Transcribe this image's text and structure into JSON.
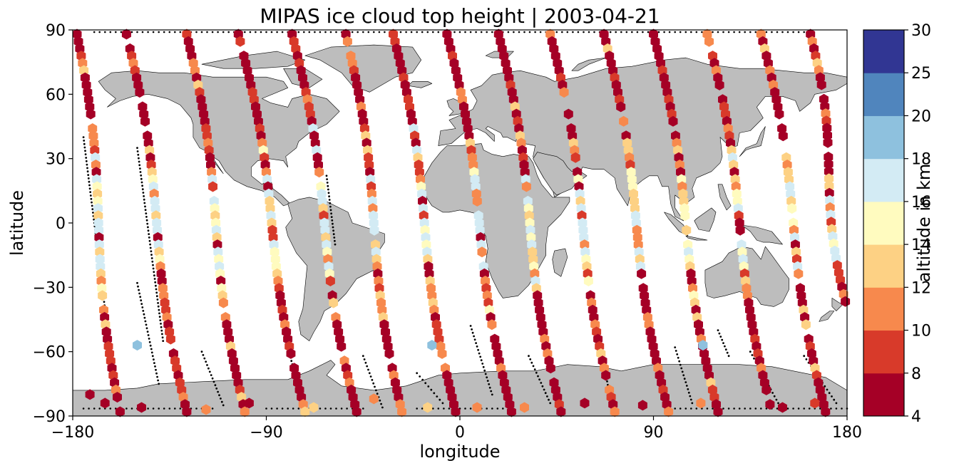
{
  "chart_data": {
    "type": "scatter",
    "title": "MIPAS ice cloud top height | 2003-04-21",
    "xlabel": "longitude",
    "ylabel": "latitude",
    "xlim": [
      -180,
      180
    ],
    "ylim": [
      -90,
      90
    ],
    "xticks": [
      -180,
      -90,
      0,
      90,
      180
    ],
    "yticks": [
      -90,
      -60,
      -30,
      0,
      30,
      60,
      90
    ],
    "xtick_labels": [
      "−180",
      "−90",
      "0",
      "90",
      "180"
    ],
    "ytick_labels": [
      "−90",
      "−60",
      "−30",
      "0",
      "30",
      "60",
      "90"
    ],
    "grid": false,
    "map_background": "world coastlines, land filled grey",
    "colors": {
      "land": "#bdbdbd",
      "ocean": "#ffffff",
      "track": "#000000"
    },
    "colorbar": {
      "label": "altitude in km",
      "boundaries": [
        4,
        8,
        10,
        12,
        14,
        16,
        18,
        20,
        25,
        30
      ],
      "tick_labels": [
        "4",
        "8",
        "10",
        "12",
        "14",
        "16",
        "18",
        "20",
        "25",
        "30"
      ],
      "colors": [
        "#a50026",
        "#d73027",
        "#f46d43",
        "#fdae61",
        "#fee090",
        "#e0f3f8",
        "#abd9e9",
        "#74add1",
        "#4575b4",
        "#313695"
      ],
      "display_colors": [
        "#a50026",
        "#d83a2a",
        "#f7894d",
        "#fdd184",
        "#fffbbf",
        "#d3ebf4",
        "#8ec1de",
        "#5085bd",
        "#313693"
      ]
    },
    "orbits": [
      {
        "start": [
          -178,
          88
        ],
        "end": [
          -158,
          -88
        ]
      },
      {
        "start": [
          -155,
          88
        ],
        "end": [
          -127,
          -88
        ]
      },
      {
        "start": [
          -127,
          88
        ],
        "end": [
          -100,
          -88
        ]
      },
      {
        "start": [
          -103,
          88
        ],
        "end": [
          -72,
          -88
        ]
      },
      {
        "start": [
          -78,
          88
        ],
        "end": [
          -48,
          -88
        ]
      },
      {
        "start": [
          -53,
          88
        ],
        "end": [
          -27,
          -88
        ]
      },
      {
        "start": [
          -31,
          88
        ],
        "end": [
          -2,
          -88
        ]
      },
      {
        "start": [
          -6,
          88
        ],
        "end": [
          24,
          -88
        ]
      },
      {
        "start": [
          18,
          88
        ],
        "end": [
          47,
          -88
        ]
      },
      {
        "start": [
          42,
          88
        ],
        "end": [
          72,
          -88
        ]
      },
      {
        "start": [
          67,
          88
        ],
        "end": [
          97,
          -88
        ]
      },
      {
        "start": [
          90,
          88
        ],
        "end": [
          120,
          -88
        ]
      },
      {
        "start": [
          115,
          88
        ],
        "end": [
          145,
          -88
        ]
      },
      {
        "start": [
          140,
          88
        ],
        "end": [
          170,
          -88
        ]
      },
      {
        "start": [
          163,
          88
        ],
        "end": [
          180,
          -40
        ]
      }
    ],
    "tracks": [
      {
        "x": [
          -175,
          -163
        ],
        "y": [
          40,
          -56
        ]
      },
      {
        "x": [
          -150,
          -140
        ],
        "y": [
          -28,
          -75
        ]
      },
      {
        "x": [
          -150,
          -138
        ],
        "y": [
          35,
          -55
        ]
      },
      {
        "x": [
          -120,
          -110
        ],
        "y": [
          -60,
          -85
        ]
      },
      {
        "x": [
          -85,
          -80
        ],
        "y": [
          -26,
          -54
        ]
      },
      {
        "x": [
          -80,
          -72
        ],
        "y": [
          -58,
          -88
        ]
      },
      {
        "x": [
          -62,
          -58
        ],
        "y": [
          22,
          -10
        ]
      },
      {
        "x": [
          -45,
          -36
        ],
        "y": [
          -62,
          -86
        ]
      },
      {
        "x": [
          -20,
          -8
        ],
        "y": [
          -70,
          -84
        ]
      },
      {
        "x": [
          5,
          15
        ],
        "y": [
          -48,
          -80
        ]
      },
      {
        "x": [
          32,
          42
        ],
        "y": [
          -62,
          -84
        ]
      },
      {
        "x": [
          65,
          70
        ],
        "y": [
          -56,
          -82
        ]
      },
      {
        "x": [
          100,
          108
        ],
        "y": [
          -58,
          -84
        ]
      },
      {
        "x": [
          120,
          125
        ],
        "y": [
          -50,
          -62
        ]
      },
      {
        "x": [
          135,
          148
        ],
        "y": [
          -60,
          -84
        ]
      },
      {
        "x": [
          160,
          175
        ],
        "y": [
          -62,
          -84
        ]
      }
    ],
    "anchors": [
      {
        "x": -172,
        "y": -80,
        "v": 6
      },
      {
        "x": -165,
        "y": -84,
        "v": 5
      },
      {
        "x": -148,
        "y": -86,
        "v": 6
      },
      {
        "x": -118,
        "y": -87,
        "v": 11
      },
      {
        "x": -98,
        "y": -84,
        "v": 6
      },
      {
        "x": -68,
        "y": -86,
        "v": 12
      },
      {
        "x": -40,
        "y": -82,
        "v": 11
      },
      {
        "x": -15,
        "y": -86,
        "v": 12
      },
      {
        "x": 8,
        "y": -86,
        "v": 11
      },
      {
        "x": 30,
        "y": -86,
        "v": 11
      },
      {
        "x": 58,
        "y": -84,
        "v": 6
      },
      {
        "x": 85,
        "y": -85,
        "v": 6
      },
      {
        "x": 112,
        "y": -84,
        "v": 11
      },
      {
        "x": 150,
        "y": -86,
        "v": 6
      },
      {
        "x": 165,
        "y": -84,
        "v": 9
      },
      {
        "x": -150,
        "y": -57,
        "v": 19
      },
      {
        "x": -13,
        "y": -57,
        "v": 19
      },
      {
        "x": 113,
        "y": -57,
        "v": 19
      }
    ]
  }
}
